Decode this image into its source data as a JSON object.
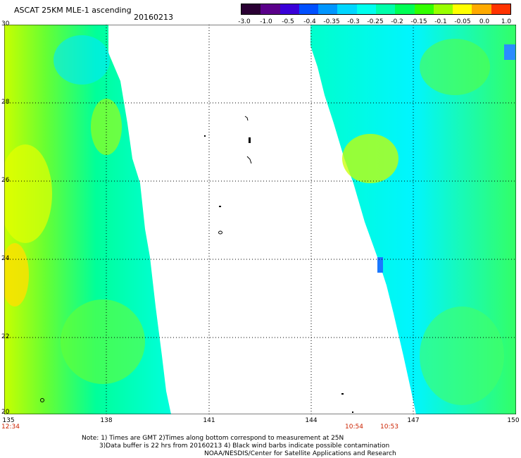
{
  "header": {
    "title": "ASCAT 25KM MLE-1 ascending",
    "date": "20160213"
  },
  "colorbar": {
    "colors": [
      "#2a0033",
      "#5a008a",
      "#3a00d8",
      "#0050ff",
      "#0096ff",
      "#00d6ff",
      "#00ffee",
      "#00ffaa",
      "#00ff55",
      "#33ff00",
      "#99ff00",
      "#ffff00",
      "#ffaa00",
      "#ff3300"
    ],
    "labels": [
      "-3.0",
      "-1.0",
      "-0.5",
      "-0.4",
      "-0.35",
      "-0.3",
      "-0.25",
      "-0.2",
      "-0.15",
      "-0.1",
      "-0.05",
      "0.0",
      "1.0"
    ]
  },
  "axes": {
    "lat_labels": [
      "30",
      "28",
      "26",
      "24",
      "22",
      "20"
    ],
    "lon_labels": [
      "135",
      "138",
      "141",
      "144",
      "147",
      "150"
    ]
  },
  "times": {
    "left": "12:34",
    "right_a": "10:54",
    "right_b": "10:53"
  },
  "notes": {
    "line1": "Note: 1) Times are GMT 2)Times along bottom correspond to measurement at 25N",
    "line2": "3)Data buffer is 22 hrs from 20160213 4) Black wind barbs indicate possible contamination",
    "line3": "NOAA/NESDIS/Center for Satellite Applications and Research"
  }
}
